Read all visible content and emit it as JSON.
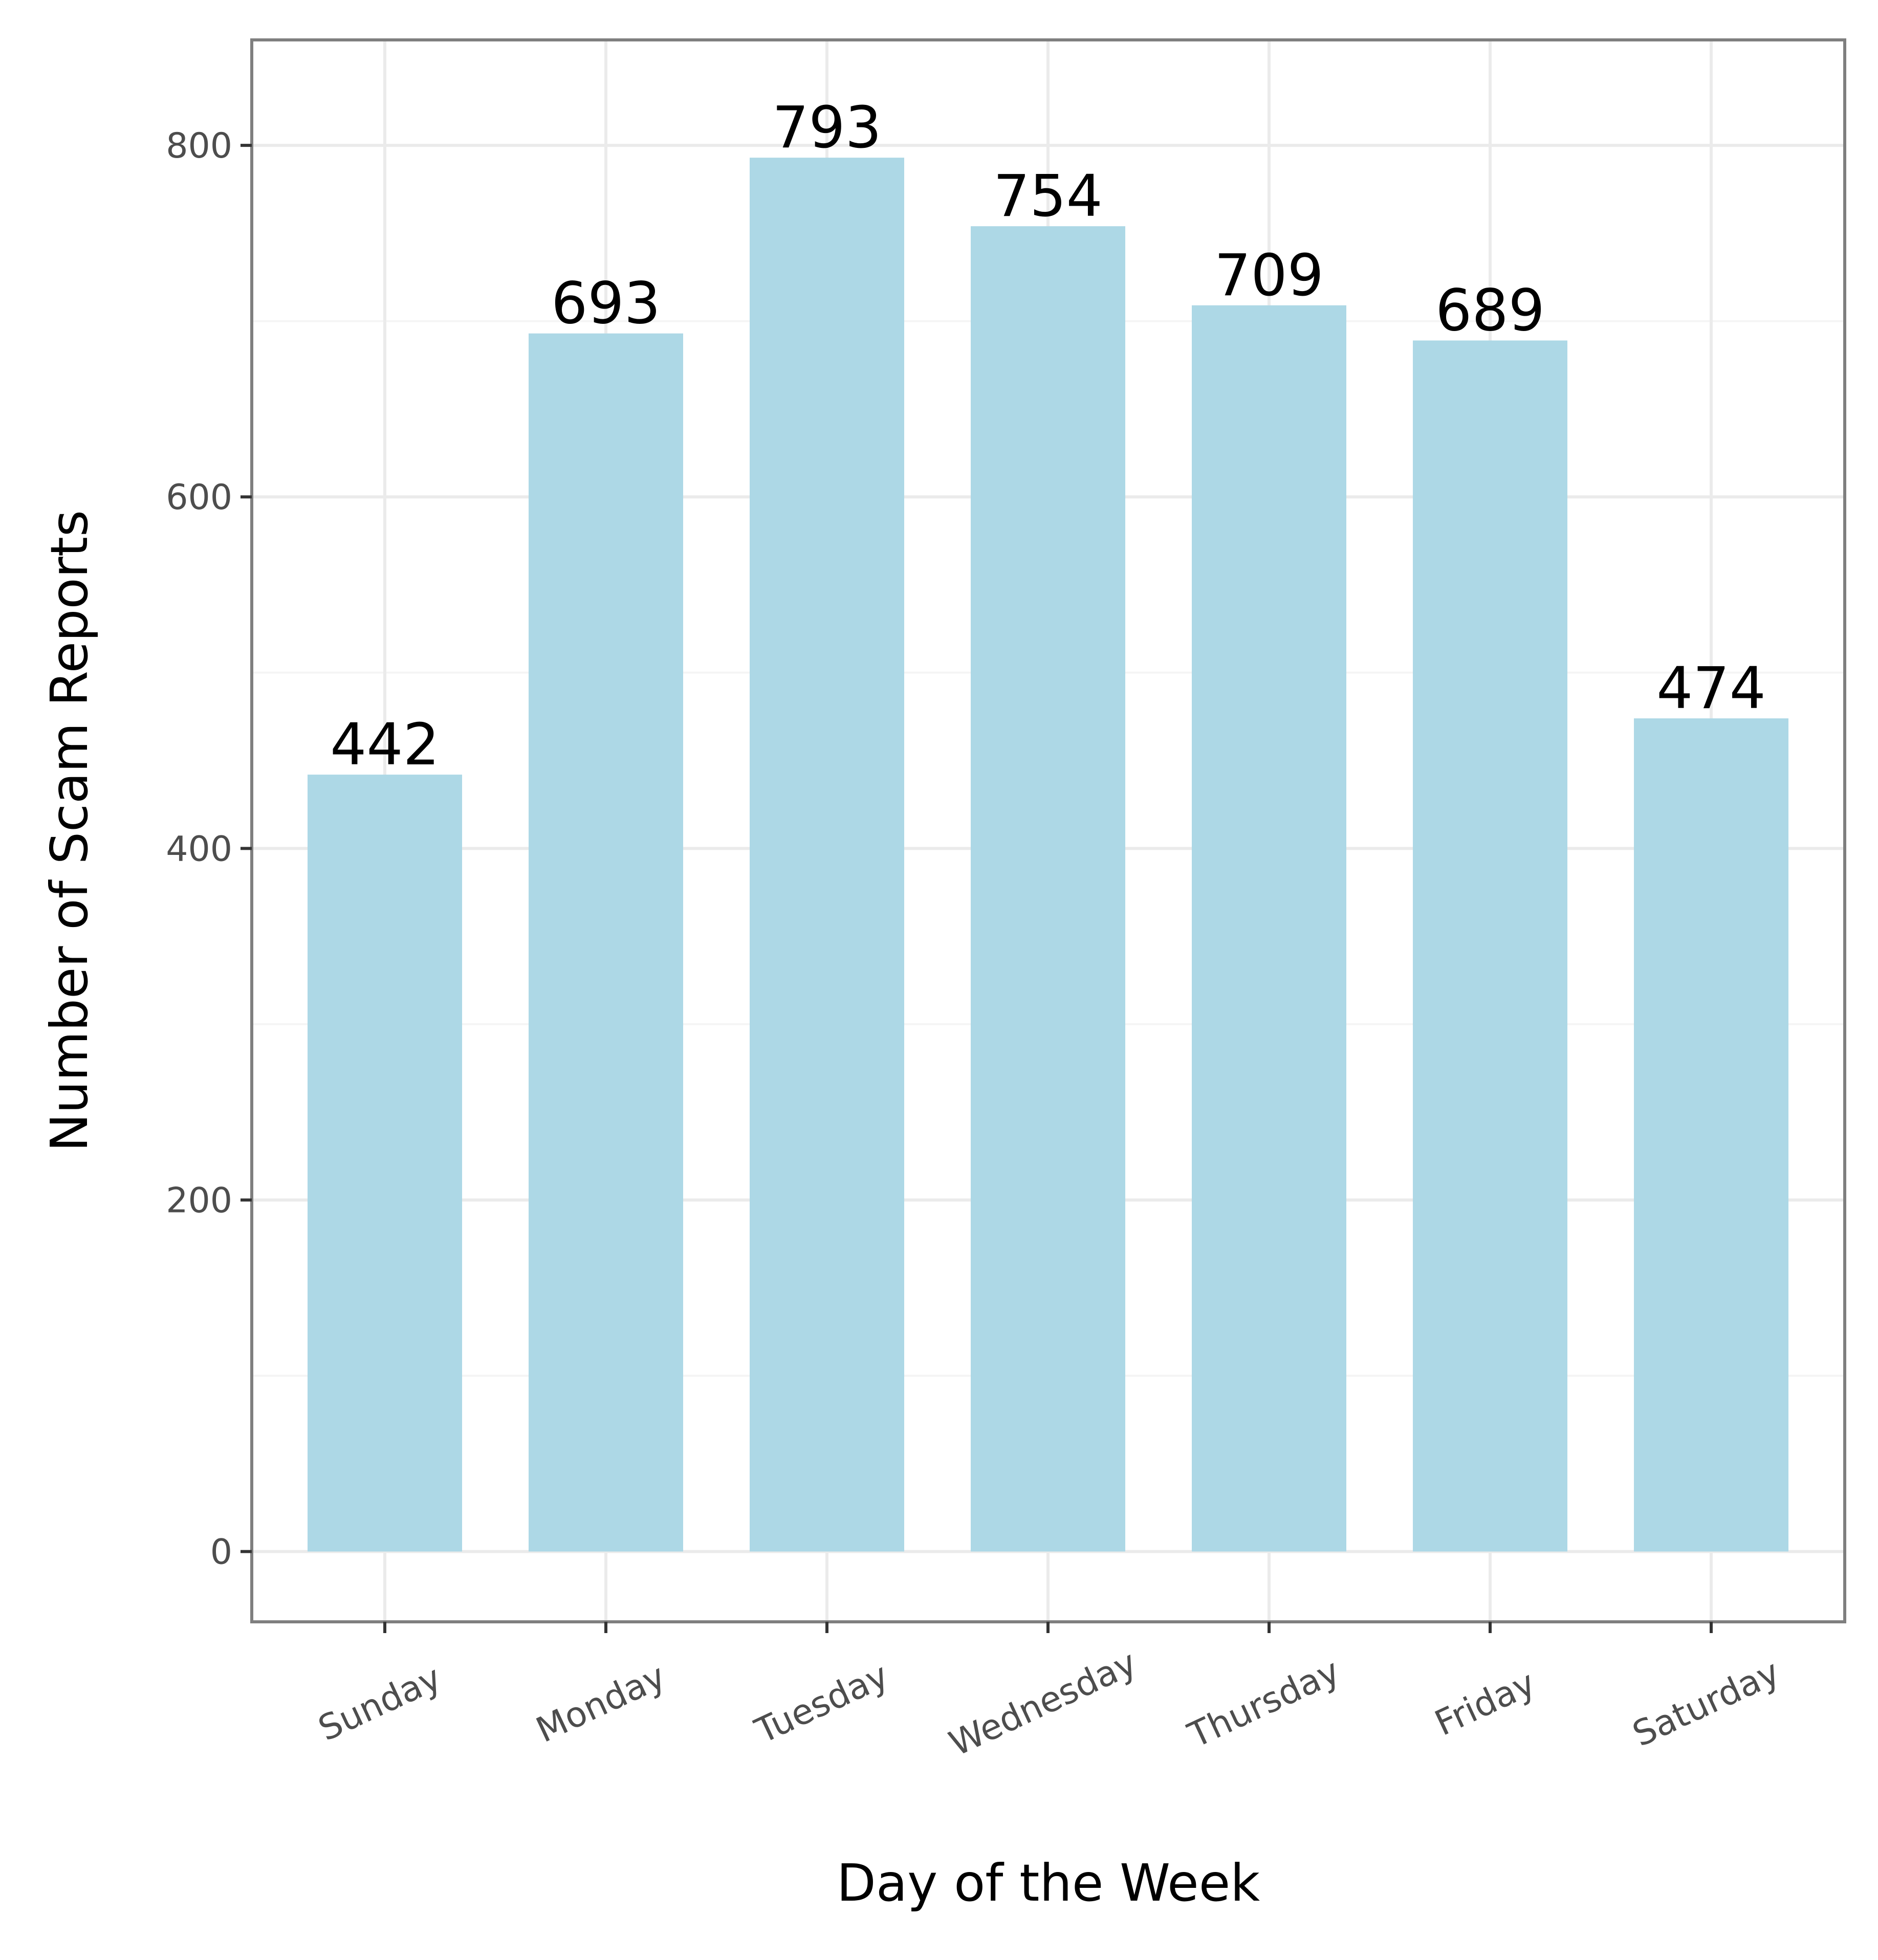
{
  "chart_data": {
    "type": "bar",
    "title": "",
    "xlabel": "Day of the Week",
    "ylabel": "Number of Scam Reports",
    "categories": [
      "Sunday",
      "Monday",
      "Tuesday",
      "Wednesday",
      "Thursday",
      "Friday",
      "Saturday"
    ],
    "values": [
      442,
      693,
      793,
      754,
      709,
      689,
      474
    ],
    "ylim": [
      -40,
      860
    ],
    "yticks": [
      "0",
      "200",
      "400",
      "600",
      "800"
    ],
    "grid": true,
    "legend": "none",
    "colors": {
      "bar": "#add8e6",
      "grid_major": "#ebebeb",
      "grid_minor": "#f5f5f5",
      "panel_border": "#7f7f7f",
      "tick": "#333333"
    }
  }
}
